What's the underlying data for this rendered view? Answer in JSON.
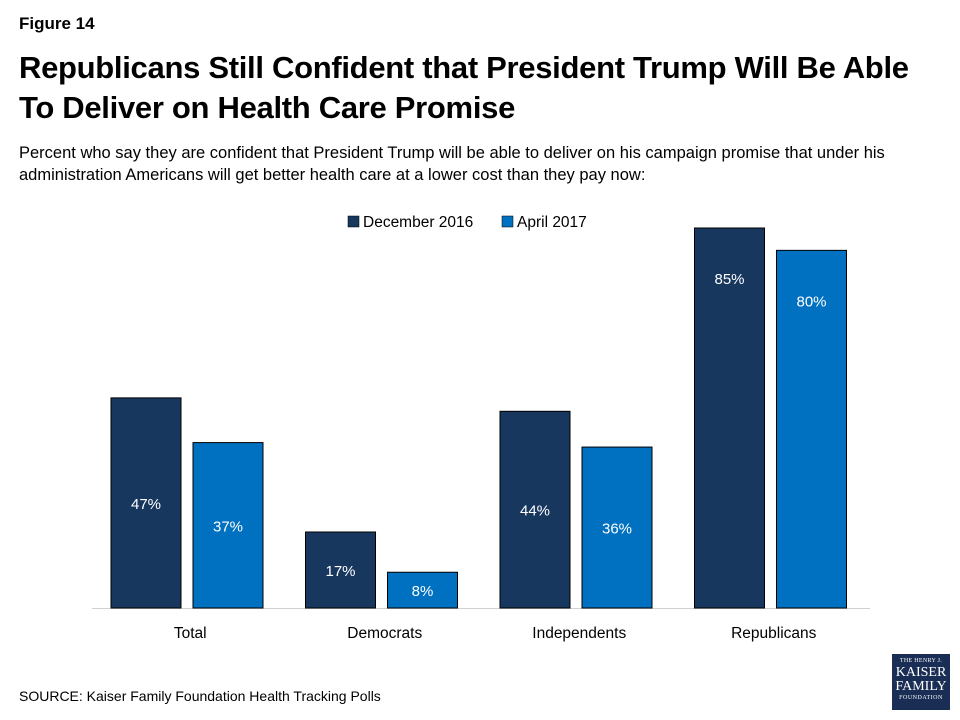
{
  "header": {
    "figure_label": "Figure 14",
    "title": "Republicans Still Confident that President Trump Will Be Able To Deliver on Health Care Promise",
    "subtitle": "Percent who say they are confident that President Trump will be able to deliver on his campaign promise that under his administration Americans will get better health care at a lower cost than they pay now:"
  },
  "footer": {
    "source": "SOURCE: Kaiser Family Foundation Health Tracking Polls",
    "logo": {
      "line1": "THE HENRY J.",
      "line2": "KAISER",
      "line3": "FAMILY",
      "line4": "FOUNDATION"
    }
  },
  "chart_data": {
    "type": "bar",
    "categories": [
      "Total",
      "Democrats",
      "Independents",
      "Republicans"
    ],
    "series": [
      {
        "name": "December 2016",
        "values": [
          47,
          17,
          44,
          85
        ],
        "labels": [
          "47%",
          "17%",
          "44%",
          "85%"
        ],
        "color": "#17375e"
      },
      {
        "name": "April 2017",
        "values": [
          37,
          8,
          36,
          80
        ],
        "labels": [
          "37%",
          "8%",
          "36%",
          "80%"
        ],
        "color": "#0070c0"
      }
    ],
    "ylim": [
      0,
      85
    ],
    "grid": false,
    "legend": "top-center"
  }
}
